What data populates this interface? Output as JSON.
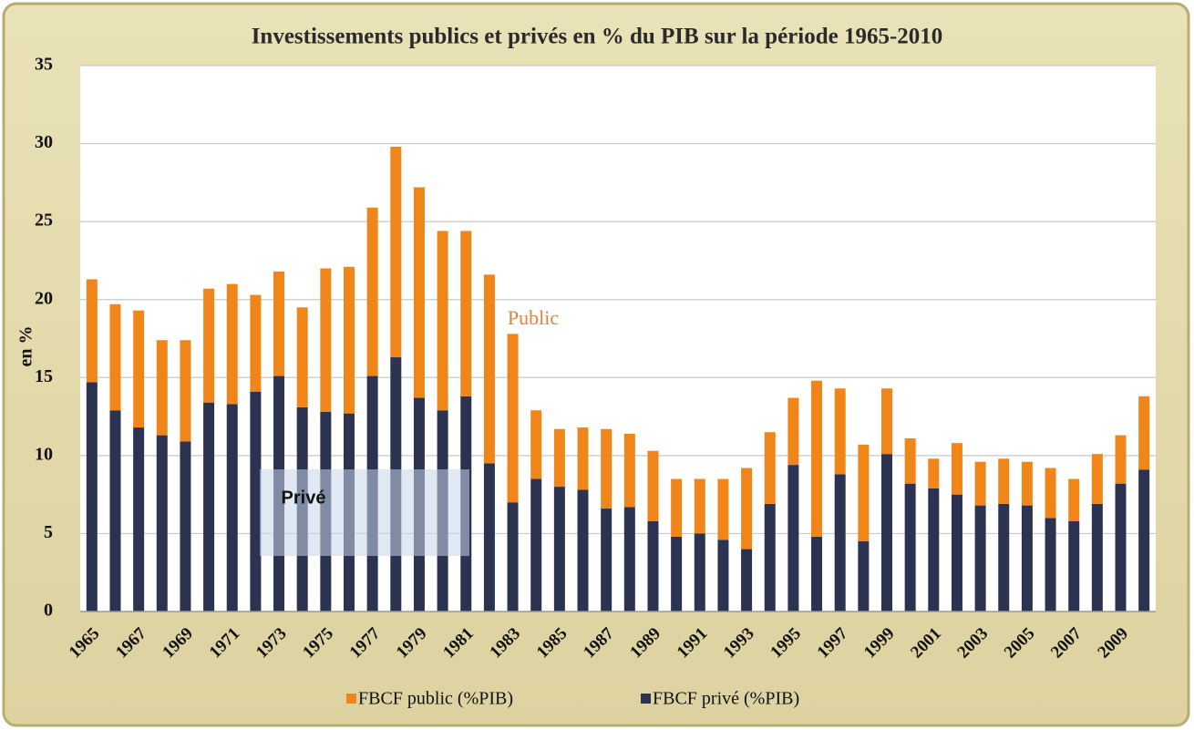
{
  "chart_data": {
    "type": "stacked-bar",
    "title": "Investissements publics et privés en % du PIB sur la période 1965-2010",
    "y_label": "en %",
    "annotations": [
      "Public",
      "Privé"
    ],
    "categories": [
      "1965",
      null,
      "1967",
      null,
      "1969",
      null,
      "1971",
      null,
      "1973",
      null,
      "1975",
      null,
      "1977",
      null,
      "1979",
      null,
      "1981",
      null,
      "1983",
      null,
      "1985",
      null,
      "1987",
      null,
      "1989",
      null,
      "1991",
      null,
      "1993",
      null,
      "1995",
      null,
      "1997",
      null,
      "1999",
      null,
      "2001",
      null,
      "2003",
      null,
      "2005",
      null,
      "2007",
      null,
      "2009",
      null
    ],
    "series": [
      {
        "name": "FBCF public (%PIB)",
        "color": "#f0861a",
        "values": [
          6.6,
          6.8,
          7.5,
          6.1,
          6.5,
          7.3,
          7.7,
          6.2,
          6.7,
          6.4,
          9.2,
          9.4,
          10.8,
          13.5,
          13.5,
          11.5,
          10.6,
          12.1,
          10.8,
          4.4,
          3.7,
          4.0,
          5.1,
          4.7,
          4.5,
          3.7,
          3.5,
          3.9,
          5.2,
          4.6,
          4.3,
          10.0,
          5.5,
          6.2,
          4.2,
          2.9,
          1.9,
          3.3,
          2.8,
          2.9,
          2.8,
          3.2,
          2.7,
          3.2,
          3.1,
          4.7
        ]
      },
      {
        "name": "FBCF privé  (%PIB)",
        "color": "#2c3350",
        "values": [
          14.7,
          12.9,
          11.8,
          11.3,
          10.9,
          13.4,
          13.3,
          14.1,
          15.1,
          13.1,
          12.8,
          12.7,
          15.1,
          16.3,
          13.7,
          12.9,
          13.8,
          9.5,
          7.0,
          8.5,
          8.0,
          7.8,
          6.6,
          6.7,
          5.8,
          4.8,
          5.0,
          4.6,
          4.0,
          6.9,
          9.4,
          4.8,
          8.8,
          4.5,
          10.1,
          8.2,
          7.9,
          7.5,
          6.8,
          6.9,
          6.8,
          6.0,
          5.8,
          6.9,
          8.2,
          9.1
        ]
      }
    ],
    "stack_order": [
      1,
      0
    ],
    "ylim": [
      0,
      35
    ],
    "yticks": [
      0,
      5,
      10,
      15,
      20,
      25,
      30,
      35
    ],
    "grid": true
  }
}
